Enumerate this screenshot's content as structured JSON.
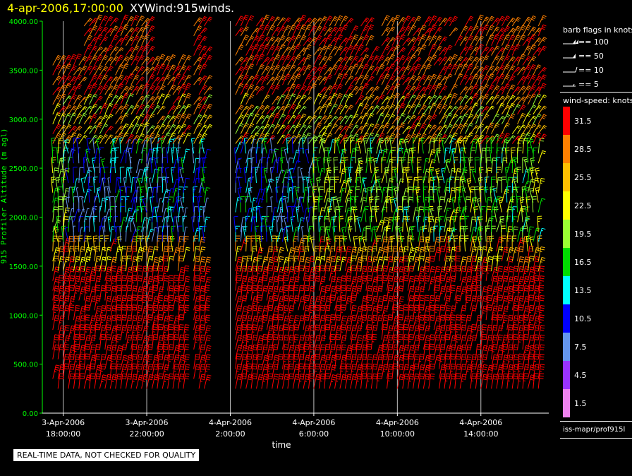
{
  "header": {
    "date_time": "4-apr-2006,17:00:00",
    "plot_name": "XYWind:915winds."
  },
  "notice": "REAL-TIME DATA, NOT CHECKED FOR QUALITY",
  "chart_data": {
    "type": "wind-barb time-height plot",
    "ylabel": "915 Profiler Altitude (m agl)",
    "xlabel": "time",
    "ylim": [
      0,
      4000
    ],
    "y_ticks": [
      "0.00",
      "500.00",
      "1000.00",
      "1500.00",
      "2000.00",
      "2500.00",
      "3000.00",
      "3500.00",
      "4000.00"
    ],
    "x_ticks": [
      {
        "date": "3-Apr-2006",
        "time": "18:00:00"
      },
      {
        "date": "3-Apr-2006",
        "time": "22:00:00"
      },
      {
        "date": "4-Apr-2006",
        "time": "2:00:00"
      },
      {
        "date": "4-Apr-2006",
        "time": "6:00:00"
      },
      {
        "date": "4-Apr-2006",
        "time": "10:00:00"
      },
      {
        "date": "4-Apr-2006",
        "time": "14:00:00"
      }
    ],
    "x_tick_hours": [
      0,
      4,
      8,
      12,
      16,
      20
    ],
    "x_range_hours": [
      -1,
      23.25
    ],
    "sample_interval_hours": 0.25,
    "data_gap_hours": [
      [
        6.0,
        6.25
      ],
      [
        7.0,
        7.75
      ],
      [
        7.5,
        8.25
      ]
    ],
    "barb_flags_title": "barb flags in knots",
    "barb_flags": [
      "== 100",
      "== 50",
      "== 10",
      "== 5"
    ],
    "color_scale_title": "wind-speed: knots",
    "color_scale": [
      {
        "label": "31.5",
        "color": "#ff0000"
      },
      {
        "label": "28.5",
        "color": "#ff8000"
      },
      {
        "label": "25.5",
        "color": "#ffbf00"
      },
      {
        "label": "22.5",
        "color": "#ffff00"
      },
      {
        "label": "19.5",
        "color": "#9aff33"
      },
      {
        "label": "16.5",
        "color": "#00dd00"
      },
      {
        "label": "13.5",
        "color": "#00ffff"
      },
      {
        "label": "10.5",
        "color": "#0000ff"
      },
      {
        "label": "7.5",
        "color": "#6495ed"
      },
      {
        "label": "4.5",
        "color": "#9933ff"
      },
      {
        "label": "1.5",
        "color": "#ee82ee"
      }
    ],
    "source_label": "iss-mapr/prof915l"
  },
  "colors": {
    "axis": "#00ff00",
    "background": "#000000",
    "title_date": "#ffff00",
    "gridline": "#c0c0c0"
  }
}
